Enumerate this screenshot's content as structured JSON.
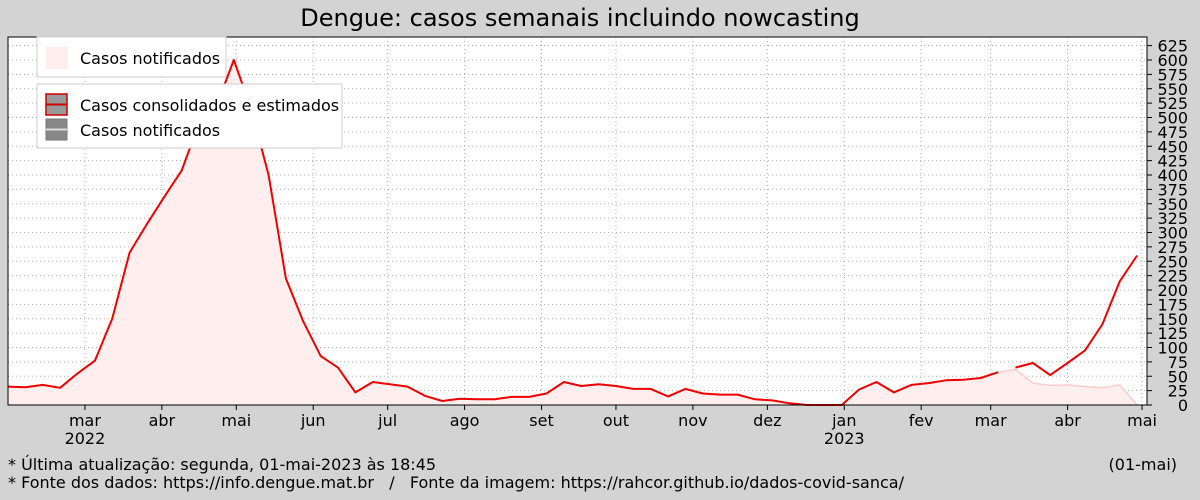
{
  "chart_data": {
    "type": "line",
    "title": "Dengue: casos semanais incluindo nowcasting",
    "xlabel": "",
    "ylabel": "",
    "ylim": [
      0,
      640
    ],
    "yticks": [
      0,
      25,
      50,
      75,
      100,
      125,
      150,
      175,
      200,
      225,
      250,
      275,
      300,
      325,
      350,
      375,
      400,
      425,
      450,
      475,
      500,
      525,
      550,
      575,
      600,
      625
    ],
    "grid": true,
    "legend_position": "top-left",
    "x_ticks": [
      {
        "date": "2022-03-01",
        "label": "mar",
        "year": "2022"
      },
      {
        "date": "2022-04-01",
        "label": "abr",
        "year": ""
      },
      {
        "date": "2022-05-01",
        "label": "mai",
        "year": ""
      },
      {
        "date": "2022-06-01",
        "label": "jun",
        "year": ""
      },
      {
        "date": "2022-07-01",
        "label": "jul",
        "year": ""
      },
      {
        "date": "2022-08-01",
        "label": "ago",
        "year": ""
      },
      {
        "date": "2022-09-01",
        "label": "set",
        "year": ""
      },
      {
        "date": "2022-10-01",
        "label": "out",
        "year": ""
      },
      {
        "date": "2022-11-01",
        "label": "nov",
        "year": ""
      },
      {
        "date": "2022-12-01",
        "label": "dez",
        "year": ""
      },
      {
        "date": "2023-01-01",
        "label": "jan",
        "year": "2023"
      },
      {
        "date": "2023-02-01",
        "label": "fev",
        "year": ""
      },
      {
        "date": "2023-03-01",
        "label": "mar",
        "year": ""
      },
      {
        "date": "2023-04-01",
        "label": "abr",
        "year": ""
      },
      {
        "date": "2023-05-01",
        "label": "mai",
        "year": ""
      }
    ],
    "xlim": [
      "2022-01-29",
      "2023-05-03"
    ],
    "fill_legend": {
      "label": "Casos notificados",
      "color": "#ffeeee"
    },
    "series": [
      {
        "name": "Casos consolidados e estimados",
        "kind": "line",
        "color": "#ee0000",
        "x": [
          "2022-01-29",
          "2022-02-05",
          "2022-02-12",
          "2022-02-19",
          "2022-02-26",
          "2022-03-05",
          "2022-03-12",
          "2022-03-19",
          "2022-03-26",
          "2022-04-02",
          "2022-04-09",
          "2022-04-16",
          "2022-04-23",
          "2022-04-30",
          "2022-05-07",
          "2022-05-14",
          "2022-05-21",
          "2022-05-28",
          "2022-06-04",
          "2022-06-11",
          "2022-06-18",
          "2022-06-25",
          "2022-07-02",
          "2022-07-09",
          "2022-07-16",
          "2022-07-23",
          "2022-07-30",
          "2022-08-06",
          "2022-08-13",
          "2022-08-20",
          "2022-08-27",
          "2022-09-03",
          "2022-09-10",
          "2022-09-17",
          "2022-09-24",
          "2022-10-01",
          "2022-10-08",
          "2022-10-15",
          "2022-10-22",
          "2022-10-29",
          "2022-11-05",
          "2022-11-12",
          "2022-11-19",
          "2022-11-26",
          "2022-12-03",
          "2022-12-10",
          "2022-12-17",
          "2022-12-24",
          "2022-12-31",
          "2023-01-07",
          "2023-01-14",
          "2023-01-21",
          "2023-01-28",
          "2023-02-04",
          "2023-02-11",
          "2023-02-18",
          "2023-02-25",
          "2023-03-04"
        ],
        "values": [
          32,
          31,
          35,
          30,
          55,
          77,
          150,
          265,
          315,
          362,
          408,
          490,
          520,
          600,
          515,
          400,
          220,
          145,
          85,
          65,
          22,
          40,
          36,
          32,
          16,
          7,
          11,
          10,
          10,
          14,
          14,
          20,
          40,
          33,
          36,
          33,
          28,
          28,
          15,
          28,
          20,
          18,
          18,
          10,
          8,
          3,
          0,
          0,
          0,
          27,
          40,
          22,
          35,
          38,
          43,
          44,
          47,
          57
        ]
      },
      {
        "name": "",
        "kind": "line",
        "color": "#ee0000",
        "x": [
          "2023-03-11",
          "2023-03-18",
          "2023-03-25",
          "2023-04-01",
          "2023-04-08",
          "2023-04-15",
          "2023-04-22",
          "2023-04-29"
        ],
        "values": [
          65,
          73,
          52,
          73,
          95,
          140,
          215,
          260
        ]
      },
      {
        "name": "Casos notificados",
        "kind": "line",
        "color": "#999999",
        "x": [
          "2023-03-04",
          "2023-03-11",
          "2023-03-18",
          "2023-03-25",
          "2023-04-01",
          "2023-04-08",
          "2023-04-15",
          "2023-04-22",
          "2023-04-29"
        ],
        "values": [
          57,
          62,
          38,
          34,
          35,
          32,
          30,
          35,
          0
        ]
      },
      {
        "name": "Casos notificados",
        "kind": "area",
        "color": "#ffeeee",
        "x": [
          "2022-01-29",
          "2022-02-05",
          "2022-02-12",
          "2022-02-19",
          "2022-02-26",
          "2022-03-05",
          "2022-03-12",
          "2022-03-19",
          "2022-03-26",
          "2022-04-02",
          "2022-04-09",
          "2022-04-16",
          "2022-04-23",
          "2022-04-30",
          "2022-05-07",
          "2022-05-14",
          "2022-05-21",
          "2022-05-28",
          "2022-06-04",
          "2022-06-11",
          "2022-06-18",
          "2022-06-25",
          "2022-07-02",
          "2022-07-09",
          "2022-07-16",
          "2022-07-23",
          "2022-07-30",
          "2022-08-06",
          "2022-08-13",
          "2022-08-20",
          "2022-08-27",
          "2022-09-03",
          "2022-09-10",
          "2022-09-17",
          "2022-09-24",
          "2022-10-01",
          "2022-10-08",
          "2022-10-15",
          "2022-10-22",
          "2022-10-29",
          "2022-11-05",
          "2022-11-12",
          "2022-11-19",
          "2022-11-26",
          "2022-12-03",
          "2022-12-10",
          "2022-12-17",
          "2022-12-24",
          "2022-12-31",
          "2023-01-07",
          "2023-01-14",
          "2023-01-21",
          "2023-01-28",
          "2023-02-04",
          "2023-02-11",
          "2023-02-18",
          "2023-02-25",
          "2023-03-04",
          "2023-03-11",
          "2023-03-18",
          "2023-03-25",
          "2023-04-01",
          "2023-04-08",
          "2023-04-15",
          "2023-04-22",
          "2023-04-29"
        ],
        "values": [
          32,
          31,
          35,
          30,
          55,
          77,
          150,
          265,
          315,
          362,
          408,
          490,
          520,
          600,
          515,
          400,
          220,
          145,
          85,
          65,
          22,
          40,
          36,
          32,
          16,
          7,
          11,
          10,
          10,
          14,
          14,
          20,
          40,
          33,
          36,
          33,
          28,
          28,
          15,
          28,
          20,
          18,
          18,
          10,
          8,
          3,
          0,
          0,
          0,
          27,
          40,
          22,
          35,
          38,
          43,
          44,
          47,
          57,
          62,
          38,
          34,
          35,
          32,
          30,
          35,
          0
        ]
      }
    ],
    "colors": {
      "background": "#d3d3d3",
      "plot_background": "#ffffff",
      "grid": "#b0b0b0"
    }
  },
  "legend": {
    "consolidated_label": "Casos consolidados e estimados",
    "notified_label": "Casos notificados"
  },
  "footer": {
    "updated": "* Última atualização: segunda, 01-mai-2023 às 18:45",
    "sources": "* Fonte dos dados: https://info.dengue.mat.br   /   Fonte da imagem: https://rahcor.github.io/dados-covid-sanca/",
    "date_tag": "(01-mai)"
  }
}
